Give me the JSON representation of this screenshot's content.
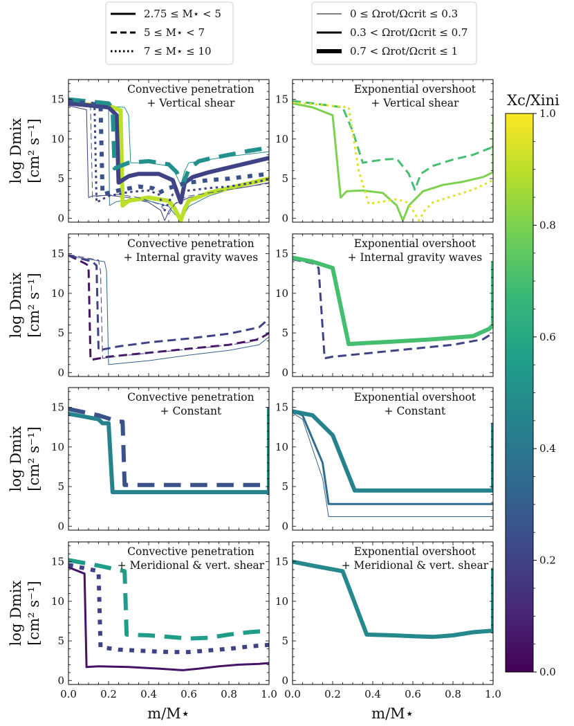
{
  "legend_mass": {
    "title": "",
    "entries": [
      {
        "label": "2.75 ≤ M⋆ < 5",
        "dash": "solid"
      },
      {
        "label": "5 ≤ M⋆ < 7",
        "dash": "dashed"
      },
      {
        "label": "7 ≤ M⋆ ≤ 10",
        "dash": "dotted"
      }
    ]
  },
  "legend_rotation": {
    "entries": [
      {
        "label": "0 ≤ Ωrot/Ωcrit ≤ 0.3",
        "width": "thin"
      },
      {
        "label": "0.3 < Ωrot/Ωcrit ≤ 0.7",
        "width": "medium"
      },
      {
        "label": "0.7 < Ωrot/Ωcrit ≤ 1",
        "width": "thick"
      }
    ]
  },
  "colorbar": {
    "label": "Xc/Xini",
    "ticks": [
      "0.0",
      "0.2",
      "0.4",
      "0.6",
      "0.8",
      "1.0"
    ],
    "colormap": "viridis",
    "colors": [
      "#440154",
      "#482878",
      "#3e4989",
      "#31688e",
      "#26828e",
      "#1f9e89",
      "#35b779",
      "#6ece58",
      "#b5de2b",
      "#fde725"
    ]
  },
  "axes": {
    "xlabel": "m/M⋆",
    "ylabel_line1": "log Dmix",
    "ylabel_line2": "[cm² s⁻¹]",
    "xticks": [
      "0.0",
      "0.2",
      "0.4",
      "0.6",
      "0.8",
      "1.0"
    ],
    "yticks": [
      "0",
      "5",
      "10",
      "15"
    ]
  },
  "chart_data": {
    "type": "line",
    "xlim": [
      0,
      1
    ],
    "ylim": [
      -0.5,
      17.5
    ],
    "xlabel": "m/M⋆",
    "ylabel": "log Dmix [cm² s⁻¹]",
    "colorbar_label": "Xc/Xini",
    "panels": [
      {
        "row": 0,
        "col": 0,
        "title_line1": "Convective penetration",
        "title_line2": "+ Vertical shear",
        "series": [
          {
            "xc": 0.4,
            "dash": "solid",
            "rot": "thin",
            "x": [
              0,
              0.2,
              0.205,
              0.24,
              0.3,
              0.4,
              0.5,
              0.53,
              0.56,
              0.58,
              0.6,
              0.7,
              0.8,
              0.9,
              1.0,
              1.0
            ],
            "y": [
              14.3,
              13.9,
              1.6,
              2.1,
              2.3,
              2.2,
              1.5,
              0.5,
              0,
              0.6,
              1.5,
              2.8,
              3.6,
              4.2,
              4.8,
              14.5
            ]
          },
          {
            "xc": 0.5,
            "dash": "solid",
            "rot": "thin",
            "x": [
              0,
              0.28,
              0.3,
              0.31,
              0.4,
              0.5,
              0.53,
              0.56,
              0.58,
              0.6,
              0.7,
              0.8,
              0.9,
              1.0,
              1.0
            ],
            "y": [
              14.5,
              14.0,
              13.0,
              7.0,
              7.0,
              6.6,
              5.8,
              4.2,
              6.0,
              7.0,
              7.4,
              7.8,
              8.1,
              8.4,
              14.6
            ]
          },
          {
            "xc": 0.15,
            "dash": "solid",
            "rot": "thin",
            "x": [
              0,
              0.09,
              0.1,
              0.12,
              0.2,
              0.3,
              0.4,
              0.46,
              0.48,
              0.5,
              0.53,
              0.6,
              0.7,
              0.8,
              0.9,
              1.0
            ],
            "y": [
              14.2,
              13.7,
              2.6,
              2.8,
              2.9,
              2.6,
              2.0,
              1.0,
              -0.3,
              0.9,
              1.8,
              2.6,
              3.1,
              3.6,
              4.0,
              4.5
            ]
          },
          {
            "xc": 0.9,
            "dash": "solid",
            "rot": "thick",
            "x": [
              0,
              0.2,
              0.26,
              0.27,
              0.3,
              0.4,
              0.5,
              0.53,
              0.56,
              0.58,
              0.6,
              0.7,
              0.8,
              0.9,
              1.0
            ],
            "y": [
              14.5,
              14.2,
              13.6,
              1.6,
              2.2,
              2.6,
              2.2,
              1.2,
              -0.3,
              1.2,
              2.2,
              3.2,
              3.8,
              4.4,
              5.0
            ]
          },
          {
            "xc": 0.2,
            "dash": "solid",
            "rot": "thick",
            "x": [
              0,
              0.2,
              0.24,
              0.25,
              0.3,
              0.35,
              0.45,
              0.52,
              0.56,
              0.58,
              0.62,
              0.7,
              0.8,
              0.9,
              1.0
            ],
            "y": [
              14.5,
              14.0,
              13.0,
              4.5,
              5.3,
              5.6,
              5.6,
              4.8,
              2.0,
              4.5,
              5.2,
              5.8,
              6.4,
              7.0,
              7.6
            ]
          },
          {
            "xc": 0.5,
            "dash": "dashed",
            "rot": "thick",
            "x": [
              0,
              0.2,
              0.22,
              0.23,
              0.3,
              0.4,
              0.5,
              0.54,
              0.57,
              0.6,
              0.65,
              0.7,
              0.8,
              0.9,
              1.0
            ],
            "y": [
              15.0,
              14.5,
              13.8,
              6.3,
              7.0,
              7.2,
              6.8,
              5.8,
              4.2,
              6.2,
              7.2,
              7.5,
              8.0,
              8.5,
              8.9
            ]
          },
          {
            "xc": 0.25,
            "dash": "dashed",
            "rot": "thin",
            "x": [
              0,
              0.11,
              0.12,
              0.15,
              0.25,
              0.35,
              0.45,
              0.5,
              0.53,
              0.56,
              0.6,
              0.7,
              0.8,
              0.9,
              1.0
            ],
            "y": [
              14.6,
              14.0,
              2.6,
              2.8,
              3.0,
              2.6,
              1.8,
              0.5,
              1.8,
              2.4,
              2.8,
              3.2,
              3.6,
              4.0,
              4.4
            ]
          },
          {
            "xc": 0.2,
            "dash": "dotted",
            "rot": "medium",
            "x": [
              0,
              0.13,
              0.14,
              0.2,
              0.3,
              0.4,
              0.45,
              0.48,
              0.52,
              0.6,
              0.7,
              0.8,
              0.9,
              1.0
            ],
            "y": [
              14.6,
              14.2,
              2.0,
              2.8,
              3.3,
              3.5,
              3.0,
              1.0,
              3.0,
              3.5,
              3.8,
              4.0,
              4.4,
              4.9
            ]
          },
          {
            "xc": 0.25,
            "dash": "dotted",
            "rot": "thick",
            "x": [
              0,
              0.16,
              0.17,
              0.25,
              0.35,
              0.42,
              0.45,
              0.5,
              0.55,
              0.6,
              0.7,
              0.8,
              0.9,
              1.0
            ],
            "y": [
              14.8,
              14.3,
              3.0,
              3.5,
              4.0,
              3.8,
              3.2,
              3.8,
              4.2,
              4.5,
              4.8,
              5.0,
              5.3,
              5.6
            ]
          }
        ]
      },
      {
        "row": 0,
        "col": 1,
        "title_line1": "Exponential overshoot",
        "title_line2": "+ Vertical shear",
        "series": [
          {
            "xc": 0.8,
            "dash": "solid",
            "rot": "medium",
            "x": [
              0,
              0.1,
              0.2,
              0.24,
              0.27,
              0.35,
              0.45,
              0.52,
              0.55,
              0.58,
              0.65,
              0.75,
              0.85,
              0.95,
              1.0,
              1.0
            ],
            "y": [
              14.5,
              14.0,
              13.0,
              2.6,
              3.4,
              3.5,
              3.2,
              1.6,
              -0.3,
              1.6,
              3.4,
              4.2,
              4.6,
              5.2,
              5.8,
              13.0
            ]
          },
          {
            "xc": 0.7,
            "dash": "dashed",
            "rot": "medium",
            "x": [
              0,
              0.1,
              0.25,
              0.3,
              0.35,
              0.4,
              0.45,
              0.52,
              0.58,
              0.61,
              0.64,
              0.7,
              0.8,
              0.9,
              1.0
            ],
            "y": [
              14.8,
              14.5,
              14.0,
              11.0,
              7.0,
              7.2,
              7.4,
              7.5,
              5.6,
              3.6,
              5.6,
              6.6,
              7.4,
              8.0,
              9.0
            ]
          },
          {
            "xc": 0.95,
            "dash": "dotted",
            "rot": "medium",
            "x": [
              0,
              0.1,
              0.28,
              0.33,
              0.38,
              0.45,
              0.52,
              0.57,
              0.6,
              0.63,
              0.66,
              0.7,
              0.8,
              0.9,
              1.0
            ],
            "y": [
              14.6,
              14.4,
              14.0,
              6.0,
              1.8,
              2.1,
              2.4,
              2.0,
              1.0,
              -0.3,
              1.0,
              2.0,
              2.8,
              3.6,
              4.8
            ]
          }
        ]
      },
      {
        "row": 1,
        "col": 0,
        "title_line1": "Convective penetration",
        "title_line2": "+ Internal gravity waves",
        "series": [
          {
            "xc": 0.05,
            "dash": "dashed",
            "rot": "medium",
            "x": [
              0,
              0.08,
              0.1,
              0.11,
              0.2,
              0.4,
              0.6,
              0.8,
              0.95,
              1.0
            ],
            "y": [
              14.8,
              13.8,
              13.5,
              1.6,
              2.0,
              2.5,
              3.0,
              3.5,
              4.2,
              5.0
            ]
          },
          {
            "xc": 0.3,
            "dash": "solid",
            "rot": "thin",
            "x": [
              0,
              0.18,
              0.19,
              0.2,
              0.4,
              0.6,
              0.8,
              0.95,
              1.0
            ],
            "y": [
              14.7,
              14.0,
              12.8,
              1.0,
              1.5,
              2.2,
              2.8,
              3.5,
              4.5
            ]
          },
          {
            "xc": 0.2,
            "dash": "dashed",
            "rot": "medium",
            "x": [
              0,
              0.12,
              0.14,
              0.15,
              0.25,
              0.4,
              0.6,
              0.8,
              0.95,
              1.0
            ],
            "y": [
              14.8,
              14.0,
              13.5,
              2.8,
              3.3,
              3.8,
              4.3,
              4.9,
              5.7,
              6.8
            ]
          },
          {
            "xc": 0.15,
            "dash": "dashed",
            "rot": "thin",
            "x": [
              0,
              0.15,
              0.16,
              0.17,
              0.3,
              0.5,
              0.7,
              0.9,
              1.0
            ],
            "y": [
              14.9,
              14.2,
              12.8,
              1.8,
              2.2,
              2.7,
              3.2,
              3.8,
              5.0
            ]
          }
        ]
      },
      {
        "row": 1,
        "col": 1,
        "title_line1": "Exponential overshoot",
        "title_line2": "+ Internal gravity waves",
        "series": [
          {
            "xc": 0.2,
            "dash": "dashed",
            "rot": "medium",
            "x": [
              0,
              0.1,
              0.13,
              0.16,
              0.2,
              0.4,
              0.6,
              0.8,
              0.95,
              1.0
            ],
            "y": [
              14.3,
              13.8,
              13.2,
              1.8,
              2.0,
              2.5,
              3.0,
              3.5,
              4.2,
              5.0
            ]
          },
          {
            "xc": 0.7,
            "dash": "solid",
            "rot": "thick",
            "x": [
              0,
              0.1,
              0.2,
              0.28,
              0.35,
              0.5,
              0.7,
              0.9,
              0.98,
              1.0,
              1.0
            ],
            "y": [
              14.5,
              14.0,
              13.2,
              3.6,
              3.7,
              3.9,
              4.2,
              4.6,
              5.5,
              6.0,
              14.0
            ]
          }
        ]
      },
      {
        "row": 2,
        "col": 0,
        "title_line1": "Convective penetration",
        "title_line2": "+ Constant",
        "series": [
          {
            "xc": 0.45,
            "dash": "solid",
            "rot": "thick",
            "x": [
              0,
              0.15,
              0.17,
              0.2,
              0.22,
              0.23,
              0.5,
              1.0,
              1.0
            ],
            "y": [
              14.2,
              13.5,
              13.0,
              13.0,
              4.3,
              4.3,
              4.3,
              4.3,
              15.0
            ]
          },
          {
            "xc": 0.25,
            "dash": "dashed",
            "rot": "thick",
            "x": [
              0,
              0.15,
              0.25,
              0.27,
              0.28,
              0.5,
              1.0
            ],
            "y": [
              14.8,
              14.0,
              13.2,
              13.2,
              5.2,
              5.2,
              5.2
            ]
          }
        ]
      },
      {
        "row": 2,
        "col": 1,
        "title_line1": "Exponential overshoot",
        "title_line2": "+ Constant",
        "series": [
          {
            "xc": 0.3,
            "dash": "solid",
            "rot": "thin",
            "x": [
              0,
              0.05,
              0.15,
              0.18,
              0.5,
              1.0
            ],
            "y": [
              14.3,
              13.5,
              6.0,
              1.2,
              1.2,
              1.2
            ]
          },
          {
            "xc": 0.35,
            "dash": "solid",
            "rot": "medium",
            "x": [
              0,
              0.05,
              0.15,
              0.18,
              0.5,
              1.0
            ],
            "y": [
              14.5,
              14.0,
              8.0,
              2.8,
              2.8,
              2.8
            ]
          },
          {
            "xc": 0.45,
            "dash": "solid",
            "rot": "thick",
            "x": [
              0,
              0.1,
              0.2,
              0.31,
              0.6,
              1.0,
              1.0
            ],
            "y": [
              14.5,
              14.0,
              11.5,
              4.5,
              4.5,
              4.5,
              13.0
            ]
          }
        ]
      },
      {
        "row": 3,
        "col": 0,
        "title_line1": "Convective penetration",
        "title_line2": "+ Meridional & vert. shear",
        "series": [
          {
            "xc": 0.05,
            "dash": "solid",
            "rot": "medium",
            "x": [
              0,
              0.08,
              0.09,
              0.15,
              0.3,
              0.45,
              0.57,
              0.65,
              0.75,
              0.85,
              0.95,
              1.0
            ],
            "y": [
              14.3,
              13.5,
              1.7,
              1.8,
              1.7,
              1.5,
              1.3,
              1.5,
              1.8,
              2.0,
              2.1,
              2.2
            ]
          },
          {
            "xc": 0.2,
            "dash": "dotted",
            "rot": "thick",
            "x": [
              0,
              0.15,
              0.16,
              0.25,
              0.4,
              0.5,
              0.6,
              0.7,
              0.8,
              0.9,
              1.0
            ],
            "y": [
              14.6,
              13.8,
              4.2,
              3.9,
              3.7,
              3.6,
              3.6,
              3.8,
              4.0,
              4.3,
              4.5
            ]
          },
          {
            "xc": 0.55,
            "dash": "dashed",
            "rot": "thick",
            "x": [
              0,
              0.15,
              0.28,
              0.29,
              0.4,
              0.5,
              0.6,
              0.7,
              0.8,
              0.9,
              1.0
            ],
            "y": [
              15.2,
              14.5,
              13.8,
              5.8,
              5.7,
              5.5,
              5.3,
              5.4,
              5.8,
              6.1,
              6.3
            ]
          }
        ]
      },
      {
        "row": 3,
        "col": 1,
        "title_line1": "Exponential overshoot",
        "title_line2": "+ Meridional & vert. shear",
        "series": [
          {
            "xc": 0.47,
            "dash": "solid",
            "rot": "thick",
            "x": [
              0,
              0.1,
              0.25,
              0.37,
              0.5,
              0.6,
              0.7,
              0.8,
              0.9,
              1.0,
              1.0
            ],
            "y": [
              15.0,
              14.5,
              13.8,
              5.8,
              5.7,
              5.6,
              5.5,
              5.7,
              6.1,
              6.3,
              14.2
            ]
          }
        ]
      }
    ]
  }
}
